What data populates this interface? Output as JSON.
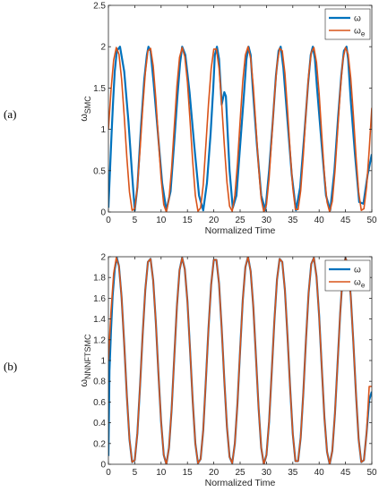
{
  "chart_data": [
    {
      "panel_label": "(a)",
      "type": "line",
      "xlabel": "Normalized Time",
      "ylabel": "ω",
      "ylabel_sub": "SMC",
      "xlim": [
        0,
        50
      ],
      "ylim": [
        0,
        2.5
      ],
      "xticks": [
        "0",
        "5",
        "10",
        "15",
        "20",
        "25",
        "30",
        "35",
        "40",
        "45",
        "50"
      ],
      "yticks": [
        "0",
        "0.5",
        "1",
        "1.5",
        "2",
        "2.5"
      ],
      "grid": false,
      "legend_position": "top-right",
      "series": [
        {
          "name": "ω",
          "color": "#0072bd",
          "x": [
            0,
            0.3,
            0.6,
            0.9,
            1.2,
            1.6,
            2.2,
            3.0,
            3.8,
            4.5,
            5.0,
            5.5,
            6.2,
            6.8,
            7.3,
            7.6,
            8.0,
            8.6,
            9.4,
            10.2,
            11.0,
            11.8,
            12.5,
            13.1,
            13.6,
            14.0,
            14.6,
            15.4,
            16.3,
            17.2,
            18.0,
            18.7,
            19.4,
            19.9,
            20.2,
            20.6,
            21.0,
            21.5,
            22.0,
            22.3,
            22.6,
            23.0,
            23.6,
            24.3,
            25.0,
            25.7,
            26.2,
            26.6,
            27.0,
            27.4,
            28.2,
            29.0,
            29.8,
            30.5,
            31.2,
            31.8,
            32.3,
            32.7,
            33.2,
            34.0,
            34.8,
            35.6,
            36.4,
            37.2,
            37.9,
            38.4,
            38.8,
            39.2,
            39.6,
            40.5,
            41.3,
            42.1,
            42.9,
            43.6,
            44.2,
            44.7,
            45.2,
            45.5,
            46.0,
            46.8,
            47.6,
            48.4,
            49.2,
            50.0
          ],
          "y": [
            0.05,
            0.5,
            0.95,
            1.35,
            1.7,
            1.95,
            2.0,
            1.7,
            1.1,
            0.45,
            0.02,
            0.3,
            1.05,
            1.6,
            1.9,
            2.0,
            1.95,
            1.55,
            0.95,
            0.35,
            0.02,
            0.25,
            0.85,
            1.4,
            1.8,
            2.0,
            1.9,
            1.45,
            0.8,
            0.2,
            0.02,
            0.35,
            0.95,
            1.5,
            1.9,
            2.0,
            1.85,
            1.3,
            1.45,
            1.4,
            1.0,
            0.5,
            0.05,
            0.2,
            0.8,
            1.4,
            1.85,
            2.0,
            1.9,
            1.5,
            0.8,
            0.2,
            0.02,
            0.5,
            1.1,
            1.65,
            1.95,
            2.0,
            1.75,
            1.1,
            0.45,
            0.02,
            0.3,
            0.95,
            1.55,
            1.9,
            2.0,
            1.85,
            1.5,
            0.8,
            0.2,
            0.02,
            0.5,
            1.15,
            1.65,
            1.95,
            2.0,
            1.85,
            1.35,
            0.7,
            0.12,
            0.1,
            0.45,
            0.7
          ]
        },
        {
          "name": "ω",
          "name_sub": "e",
          "color": "#d95319",
          "x": [
            0,
            0.5,
            1.0,
            1.5,
            2.0,
            2.5,
            3.0,
            3.5,
            4.0,
            4.5,
            5.0,
            5.5,
            6.0,
            6.5,
            7.0,
            7.5,
            8.0,
            8.5,
            9.0,
            9.5,
            10.0,
            10.5,
            11.0,
            11.5,
            12.0,
            12.5,
            13.0,
            13.5,
            14.0,
            14.5,
            15.0,
            15.5,
            16.0,
            16.5,
            17.0,
            17.5,
            18.0,
            18.5,
            19.0,
            19.5,
            20.0,
            20.5,
            21.0,
            21.5,
            22.0,
            22.5,
            23.0,
            23.5,
            24.0,
            24.5,
            25.0,
            25.5,
            26.0,
            26.5,
            27.0,
            27.5,
            28.0,
            28.5,
            29.0,
            29.5,
            30.0,
            30.5,
            31.0,
            31.5,
            32.0,
            32.5,
            33.0,
            33.5,
            34.0,
            34.5,
            35.0,
            35.5,
            36.0,
            36.5,
            37.0,
            37.5,
            38.0,
            38.5,
            39.0,
            39.5,
            40.0,
            40.5,
            41.0,
            41.5,
            42.0,
            42.5,
            43.0,
            43.5,
            44.0,
            44.5,
            45.0,
            45.5,
            46.0,
            46.5,
            47.0,
            47.5,
            48.0,
            48.5,
            49.0,
            49.5,
            50.0
          ],
          "y": [
            1.0,
            1.48,
            1.84,
            1.99,
            1.91,
            1.61,
            1.16,
            0.66,
            0.24,
            0.02,
            0.04,
            0.3,
            0.75,
            1.25,
            1.68,
            1.95,
            1.98,
            1.77,
            1.37,
            0.87,
            0.41,
            0.09,
            0.0,
            0.16,
            0.53,
            1.03,
            1.52,
            1.87,
            1.99,
            1.88,
            1.57,
            1.1,
            0.61,
            0.2,
            0.01,
            0.05,
            0.33,
            0.81,
            1.31,
            1.73,
            1.97,
            1.97,
            1.74,
            1.31,
            0.81,
            0.36,
            0.07,
            0.01,
            0.2,
            0.59,
            1.1,
            1.58,
            1.9,
            2.0,
            1.86,
            1.52,
            1.04,
            0.55,
            0.16,
            0.0,
            0.09,
            0.41,
            0.89,
            1.38,
            1.78,
            1.98,
            1.95,
            1.68,
            1.23,
            0.73,
            0.29,
            0.03,
            0.03,
            0.26,
            0.69,
            1.2,
            1.65,
            1.93,
            1.99,
            1.81,
            1.43,
            0.93,
            0.45,
            0.12,
            0.0,
            0.13,
            0.49,
            0.97,
            1.46,
            1.84,
            1.99,
            1.91,
            1.62,
            1.17,
            0.67,
            0.24,
            0.02,
            0.04,
            0.3,
            0.75,
            1.26
          ]
        }
      ]
    },
    {
      "panel_label": "(b)",
      "type": "line",
      "xlabel": "Normalized Time",
      "ylabel": "ω",
      "ylabel_sub": "NNNFTSMC",
      "xlim": [
        0,
        50
      ],
      "ylim": [
        0,
        2
      ],
      "xticks": [
        "0",
        "5",
        "10",
        "15",
        "20",
        "25",
        "30",
        "35",
        "40",
        "45",
        "50"
      ],
      "yticks": [
        "0",
        "0.2",
        "0.4",
        "0.6",
        "0.8",
        "1",
        "1.2",
        "1.4",
        "1.6",
        "1.8",
        "2"
      ],
      "grid": false,
      "legend_position": "top-right",
      "series": [
        {
          "name": "ω",
          "color": "#0072bd",
          "x": [
            0,
            0.2,
            0.5,
            0.8,
            1.2,
            1.6,
            2.0,
            2.5,
            3.0,
            3.5,
            4.0,
            4.5,
            5.0,
            5.5,
            6.0,
            6.5,
            7.0,
            7.5,
            8.0,
            8.5,
            9.0,
            9.5,
            10.0,
            10.5,
            11.0,
            11.5,
            12.0,
            12.5,
            13.0,
            13.5,
            14.0,
            14.5,
            15.0,
            15.5,
            16.0,
            16.5,
            17.0,
            17.5,
            18.0,
            18.5,
            19.0,
            19.5,
            20.0,
            20.5,
            21.0,
            21.5,
            22.0,
            22.5,
            23.0,
            23.5,
            24.0,
            24.5,
            25.0,
            25.5,
            26.0,
            26.5,
            27.0,
            27.5,
            28.0,
            28.5,
            29.0,
            29.5,
            30.0,
            30.5,
            31.0,
            31.5,
            32.0,
            32.5,
            33.0,
            33.5,
            34.0,
            34.5,
            35.0,
            35.5,
            36.0,
            36.5,
            37.0,
            37.5,
            38.0,
            38.5,
            39.0,
            39.5,
            40.0,
            40.5,
            41.0,
            41.5,
            42.0,
            42.5,
            43.0,
            43.5,
            44.0,
            44.5,
            45.0,
            45.5,
            46.0,
            46.5,
            47.0,
            47.5,
            48.0,
            48.5,
            49.0,
            49.5,
            50.0
          ],
          "y": [
            0.08,
            0.9,
            1.3,
            1.62,
            1.88,
            1.99,
            1.91,
            1.61,
            1.16,
            0.66,
            0.24,
            0.02,
            0.04,
            0.3,
            0.75,
            1.25,
            1.68,
            1.95,
            1.98,
            1.77,
            1.37,
            0.87,
            0.41,
            0.09,
            0.0,
            0.16,
            0.53,
            1.03,
            1.52,
            1.87,
            1.99,
            1.88,
            1.57,
            1.1,
            0.61,
            0.2,
            0.01,
            0.05,
            0.33,
            0.81,
            1.31,
            1.73,
            1.97,
            1.97,
            1.74,
            1.31,
            0.81,
            0.36,
            0.07,
            0.01,
            0.2,
            0.59,
            1.1,
            1.58,
            1.9,
            2.0,
            1.86,
            1.52,
            1.04,
            0.55,
            0.16,
            0.0,
            0.09,
            0.41,
            0.89,
            1.38,
            1.78,
            1.98,
            1.95,
            1.68,
            1.23,
            0.73,
            0.29,
            0.03,
            0.03,
            0.26,
            0.69,
            1.2,
            1.65,
            1.93,
            1.99,
            1.81,
            1.43,
            0.93,
            0.45,
            0.12,
            0.0,
            0.13,
            0.49,
            0.97,
            1.46,
            1.84,
            1.99,
            1.91,
            1.62,
            1.17,
            0.67,
            0.24,
            0.02,
            0.04,
            0.3,
            0.62,
            0.7
          ]
        },
        {
          "name": "ω",
          "name_sub": "e",
          "color": "#d95319",
          "x": [
            0,
            0.5,
            1.0,
            1.5,
            2.0,
            2.5,
            3.0,
            3.5,
            4.0,
            4.5,
            5.0,
            5.5,
            6.0,
            6.5,
            7.0,
            7.5,
            8.0,
            8.5,
            9.0,
            9.5,
            10.0,
            10.5,
            11.0,
            11.5,
            12.0,
            12.5,
            13.0,
            13.5,
            14.0,
            14.5,
            15.0,
            15.5,
            16.0,
            16.5,
            17.0,
            17.5,
            18.0,
            18.5,
            19.0,
            19.5,
            20.0,
            20.5,
            21.0,
            21.5,
            22.0,
            22.5,
            23.0,
            23.5,
            24.0,
            24.5,
            25.0,
            25.5,
            26.0,
            26.5,
            27.0,
            27.5,
            28.0,
            28.5,
            29.0,
            29.5,
            30.0,
            30.5,
            31.0,
            31.5,
            32.0,
            32.5,
            33.0,
            33.5,
            34.0,
            34.5,
            35.0,
            35.5,
            36.0,
            36.5,
            37.0,
            37.5,
            38.0,
            38.5,
            39.0,
            39.5,
            40.0,
            40.5,
            41.0,
            41.5,
            42.0,
            42.5,
            43.0,
            43.5,
            44.0,
            44.5,
            45.0,
            45.5,
            46.0,
            46.5,
            47.0,
            47.5,
            48.0,
            48.5,
            49.0,
            49.5,
            50.0
          ],
          "y": [
            1.0,
            1.48,
            1.84,
            1.99,
            1.91,
            1.61,
            1.16,
            0.66,
            0.24,
            0.02,
            0.04,
            0.3,
            0.75,
            1.25,
            1.68,
            1.95,
            1.98,
            1.77,
            1.37,
            0.87,
            0.41,
            0.09,
            0.0,
            0.16,
            0.53,
            1.03,
            1.52,
            1.87,
            1.99,
            1.88,
            1.57,
            1.1,
            0.61,
            0.2,
            0.01,
            0.05,
            0.33,
            0.81,
            1.31,
            1.73,
            1.97,
            1.97,
            1.74,
            1.31,
            0.81,
            0.36,
            0.07,
            0.01,
            0.2,
            0.59,
            1.1,
            1.58,
            1.9,
            2.0,
            1.86,
            1.52,
            1.04,
            0.55,
            0.16,
            0.0,
            0.09,
            0.41,
            0.89,
            1.38,
            1.78,
            1.98,
            1.95,
            1.68,
            1.23,
            0.73,
            0.29,
            0.03,
            0.03,
            0.26,
            0.69,
            1.2,
            1.65,
            1.93,
            1.99,
            1.81,
            1.43,
            0.93,
            0.45,
            0.12,
            0.0,
            0.13,
            0.49,
            0.97,
            1.46,
            1.84,
            1.99,
            1.91,
            1.62,
            1.17,
            0.67,
            0.24,
            0.02,
            0.04,
            0.3,
            0.75,
            0.75
          ]
        }
      ]
    }
  ]
}
